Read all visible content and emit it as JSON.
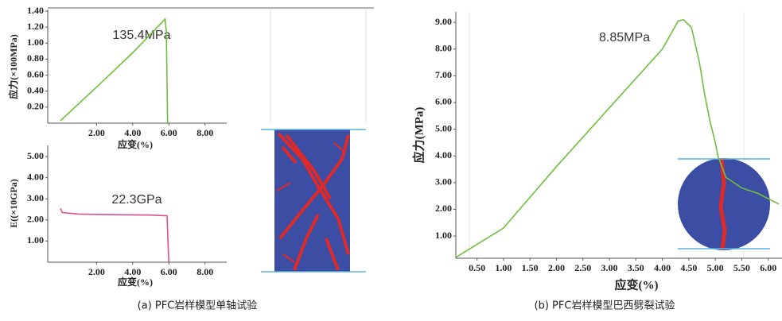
{
  "chart_data": [
    {
      "type": "line",
      "ylabel": "应力(×100MPa)",
      "xlabel": "应变(%)",
      "annotation": "135.4MPa",
      "x": [
        0,
        2,
        4,
        5.79,
        5.86,
        5.93
      ],
      "values": [
        0.03,
        0.45,
        0.88,
        1.3,
        1.15,
        0.0
      ],
      "color": "#6fbf3f",
      "xlim": [
        -0.7,
        9.2
      ],
      "xticks": [
        {
          "value": 2,
          "label": "2.00"
        },
        {
          "value": 4,
          "label": "4.00"
        },
        {
          "value": 6,
          "label": "6.00"
        },
        {
          "value": 8,
          "label": "8.00"
        }
      ],
      "ylim": [
        0,
        1.42
      ],
      "yticks": [
        {
          "value": 0.2,
          "label": "0.20"
        },
        {
          "value": 0.4,
          "label": "0.40"
        },
        {
          "value": 0.6,
          "label": "0.60"
        },
        {
          "value": 0.8,
          "label": "0.80"
        },
        {
          "value": 1.0,
          "label": "1.00"
        },
        {
          "value": 1.2,
          "label": "1.20"
        },
        {
          "value": 1.4,
          "label": "1.40"
        }
      ]
    },
    {
      "type": "line",
      "ylabel": "E((×10GPa)",
      "xlabel": "应变(%)",
      "annotation": "22.3GPa",
      "x": [
        0,
        0.1,
        1,
        3,
        5,
        5.9,
        5.95,
        6.0
      ],
      "values": [
        2.55,
        2.35,
        2.28,
        2.25,
        2.23,
        2.2,
        1.0,
        0.02
      ],
      "color": "#e0508a",
      "xlim": [
        -0.7,
        9.2
      ],
      "xticks": [
        {
          "value": 2,
          "label": "2.00"
        },
        {
          "value": 4,
          "label": "4.00"
        },
        {
          "value": 6,
          "label": "6.00"
        },
        {
          "value": 8,
          "label": "8.00"
        }
      ],
      "ylim": [
        0,
        5.53
      ],
      "yticks": [
        {
          "value": 1,
          "label": "1.00"
        },
        {
          "value": 2,
          "label": "2.00"
        },
        {
          "value": 3,
          "label": "3.00"
        },
        {
          "value": 4,
          "label": "4.00"
        },
        {
          "value": 5,
          "label": "5.00"
        }
      ]
    },
    {
      "type": "line",
      "ylabel": "应力(MPa)",
      "xlabel": "应变(%)",
      "annotation": "8.85MPa",
      "x": [
        0.1,
        1,
        2,
        3,
        4,
        4.3,
        4.4,
        4.55,
        4.7,
        4.8,
        4.9,
        5.0,
        5.05,
        5.2,
        5.5,
        5.8,
        6.0,
        6.2
      ],
      "values": [
        0.2,
        1.3,
        3.6,
        5.8,
        8.0,
        9.05,
        9.1,
        8.8,
        7.5,
        6.3,
        5.3,
        4.5,
        4.0,
        3.2,
        2.8,
        2.6,
        2.4,
        2.2
      ],
      "color": "#6fbf3f",
      "xlim": [
        0.1,
        6.26
      ],
      "xticks": [
        {
          "value": 0.5,
          "label": "0.50"
        },
        {
          "value": 1,
          "label": "1.00"
        },
        {
          "value": 1.5,
          "label": "1.50"
        },
        {
          "value": 2,
          "label": "2.00"
        },
        {
          "value": 2.5,
          "label": "2.50"
        },
        {
          "value": 3,
          "label": "3.00"
        },
        {
          "value": 3.5,
          "label": "3.50"
        },
        {
          "value": 4,
          "label": "4.00"
        },
        {
          "value": 4.5,
          "label": "4.50"
        },
        {
          "value": 5,
          "label": "5.00"
        },
        {
          "value": 5.5,
          "label": "5.50"
        },
        {
          "value": 6,
          "label": "6.00"
        }
      ],
      "ylim": [
        0.17,
        9.39
      ],
      "yticks": [
        {
          "value": 1,
          "label": "1.00"
        },
        {
          "value": 2,
          "label": "2.00"
        },
        {
          "value": 3,
          "label": "3.00"
        },
        {
          "value": 4,
          "label": "4.00"
        },
        {
          "value": 5,
          "label": "5.00"
        },
        {
          "value": 6,
          "label": "6.00"
        },
        {
          "value": 7,
          "label": "7.00"
        },
        {
          "value": 8,
          "label": "8.00"
        },
        {
          "value": 9,
          "label": "9.00"
        }
      ]
    }
  ],
  "captions": [
    "(a) PFC岩样模型单轴试验",
    "(b) PFC岩样模型巴西劈裂试验"
  ]
}
